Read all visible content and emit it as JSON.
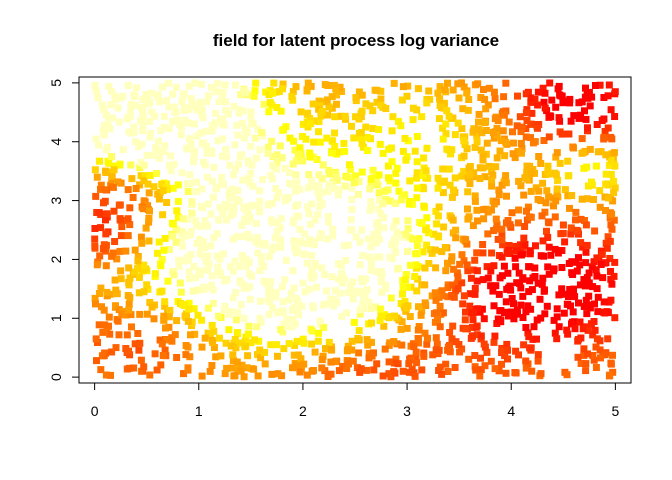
{
  "chart_data": {
    "type": "scatter",
    "title": "field for latent process log variance",
    "xlabel": "",
    "ylabel": "",
    "xlim": [
      -0.15,
      5.15
    ],
    "ylim": [
      -0.1,
      5.1
    ],
    "xticks": [
      "0",
      "1",
      "2",
      "3",
      "4",
      "5"
    ],
    "yticks": [
      "0",
      "1",
      "2",
      "3",
      "4",
      "5"
    ],
    "grid": false,
    "legend": "none",
    "marker": "filled-square",
    "color_scale": "heat (red → orange → yellow → pale yellow)",
    "colors": {
      "low": "#ff0000",
      "mid_low": "#ff6a00",
      "mid": "#ffaa00",
      "high": "#ffe600",
      "highest": "#ffffaa"
    },
    "point_count": 2200,
    "x_range": [
      0,
      5
    ],
    "y_range": [
      0,
      5
    ]
  }
}
